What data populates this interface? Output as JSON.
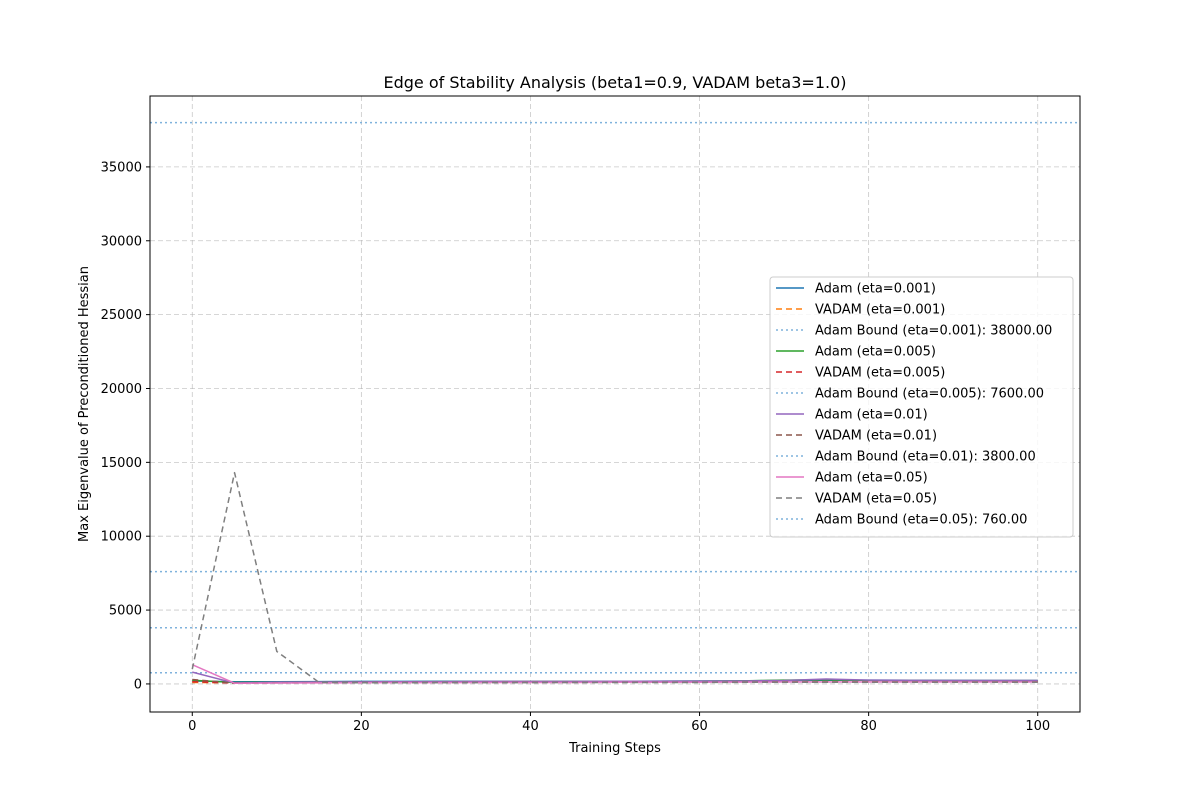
{
  "chart_data": {
    "type": "line",
    "title": "Edge of Stability Analysis (beta1=0.9, VADAM beta3=1.0)",
    "xlabel": "Training Steps",
    "ylabel": "Max Eigenvalue of Preconditioned Hessian",
    "xlim": [
      -5,
      105
    ],
    "ylim": [
      -1900,
      39800
    ],
    "xticks": [
      0,
      20,
      40,
      60,
      80,
      100
    ],
    "yticks": [
      0,
      5000,
      10000,
      15000,
      20000,
      25000,
      30000,
      35000
    ],
    "grid": true,
    "legend_position": "center-right",
    "x": [
      0,
      5,
      10,
      15,
      20,
      25,
      30,
      35,
      40,
      45,
      50,
      55,
      60,
      65,
      70,
      75,
      80,
      85,
      90,
      95,
      100
    ],
    "series": [
      {
        "name": "Adam (eta=0.001)",
        "kind": "line",
        "color": "#1f77b4",
        "dash": "solid",
        "values": [
          200,
          150,
          150,
          160,
          170,
          170,
          180,
          180,
          170,
          180,
          180,
          190,
          200,
          210,
          230,
          250,
          260,
          250,
          240,
          230,
          230
        ]
      },
      {
        "name": "VADAM (eta=0.001)",
        "kind": "line",
        "color": "#ff7f0e",
        "dash": "dashed",
        "values": [
          100,
          80,
          90,
          100,
          110,
          110,
          120,
          120,
          120,
          120,
          130,
          130,
          130,
          140,
          150,
          160,
          150,
          150,
          150,
          150,
          150
        ]
      },
      {
        "name": "Adam Bound (eta=0.001): 38000.00",
        "kind": "hline",
        "value": 38000,
        "color": "#7fb2dc",
        "dash": "dotted"
      },
      {
        "name": "Adam (eta=0.005)",
        "kind": "line",
        "color": "#2ca02c",
        "dash": "solid",
        "values": [
          250,
          100,
          120,
          130,
          140,
          150,
          160,
          160,
          170,
          170,
          170,
          180,
          190,
          210,
          260,
          280,
          240,
          230,
          220,
          220,
          220
        ]
      },
      {
        "name": "VADAM (eta=0.005)",
        "kind": "line",
        "color": "#d62728",
        "dash": "dashed",
        "values": [
          150,
          60,
          80,
          90,
          100,
          110,
          110,
          120,
          120,
          120,
          130,
          130,
          130,
          140,
          150,
          150,
          150,
          150,
          150,
          150,
          150
        ]
      },
      {
        "name": "Adam Bound (eta=0.005): 7600.00",
        "kind": "hline",
        "value": 7600,
        "color": "#7fb2dc",
        "dash": "dotted"
      },
      {
        "name": "Adam (eta=0.01)",
        "kind": "line",
        "color": "#9467bd",
        "dash": "solid",
        "values": [
          800,
          60,
          110,
          130,
          140,
          150,
          160,
          170,
          170,
          170,
          180,
          180,
          190,
          200,
          230,
          330,
          260,
          240,
          230,
          230,
          230
        ]
      },
      {
        "name": "VADAM (eta=0.01)",
        "kind": "line",
        "color": "#8c564b",
        "dash": "dashed",
        "values": [
          300,
          50,
          70,
          80,
          90,
          100,
          100,
          110,
          110,
          110,
          120,
          120,
          120,
          130,
          140,
          140,
          140,
          140,
          140,
          140,
          140
        ]
      },
      {
        "name": "Adam Bound (eta=0.01): 3800.00",
        "kind": "hline",
        "value": 3800,
        "color": "#7fb2dc",
        "dash": "dotted"
      },
      {
        "name": "Adam (eta=0.05)",
        "kind": "line",
        "color": "#e377c2",
        "dash": "solid",
        "values": [
          1300,
          50,
          60,
          70,
          80,
          90,
          90,
          100,
          100,
          100,
          110,
          110,
          110,
          120,
          130,
          130,
          130,
          130,
          130,
          130,
          130
        ]
      },
      {
        "name": "VADAM (eta=0.05)",
        "kind": "line",
        "color": "#7f7f7f",
        "dash": "dashed",
        "values": [
          1000,
          14300,
          2200,
          100,
          80,
          80,
          90,
          90,
          90,
          100,
          100,
          100,
          100,
          110,
          110,
          110,
          110,
          110,
          110,
          110,
          110
        ]
      },
      {
        "name": "Adam Bound (eta=0.05): 760.00",
        "kind": "hline",
        "value": 760,
        "color": "#7fb2dc",
        "dash": "dotted"
      }
    ]
  }
}
